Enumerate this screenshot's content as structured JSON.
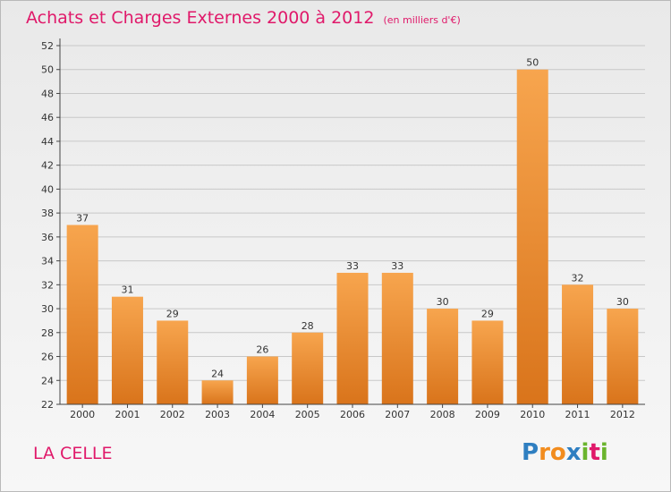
{
  "header": {
    "title": "Achats et Charges Externes 2000 à 2012",
    "subtitle": "(en milliers d'€)"
  },
  "footer": {
    "city": "LA CELLE",
    "logo_letters": [
      "P",
      "r",
      "o",
      "x",
      "i",
      "t",
      "i"
    ],
    "logo_colors": [
      "#2f7fc1",
      "#f28c1e",
      "#f28c1e",
      "#2f7fc1",
      "#6ab42d",
      "#e0196a",
      "#6ab42d"
    ]
  },
  "colors": {
    "bar_top": "#f7a54e",
    "bar_bottom": "#d9741b",
    "grid": "#c8c8c8",
    "axis": "#444444"
  },
  "chart_data": {
    "type": "bar",
    "title": "Achats et Charges Externes 2000 à 2012",
    "subtitle": "(en milliers d'€)",
    "categories": [
      "2000",
      "2001",
      "2002",
      "2003",
      "2004",
      "2005",
      "2006",
      "2007",
      "2008",
      "2009",
      "2010",
      "2011",
      "2012"
    ],
    "values": [
      37,
      31,
      29,
      24,
      26,
      28,
      33,
      33,
      30,
      29,
      50,
      32,
      30
    ],
    "ylim": [
      22,
      52
    ],
    "yticks": [
      22,
      24,
      26,
      28,
      30,
      32,
      34,
      36,
      38,
      40,
      42,
      44,
      46,
      48,
      50,
      52
    ],
    "grid": true,
    "xlabel": "",
    "ylabel": ""
  }
}
